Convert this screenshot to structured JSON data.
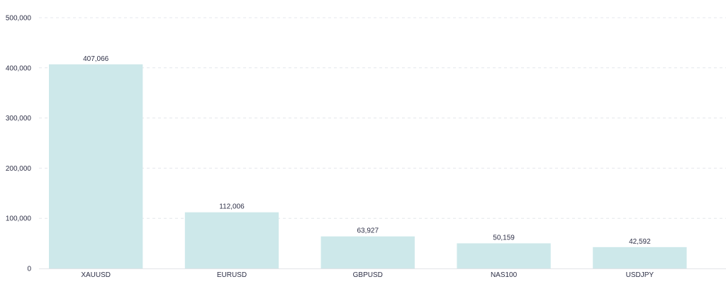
{
  "chart_data": {
    "type": "bar",
    "title": "",
    "xlabel": "",
    "ylabel": "",
    "categories": [
      "XAUUSD",
      "EURUSD",
      "GBPUSD",
      "NAS100",
      "USDJPY"
    ],
    "values": [
      407066,
      112006,
      63927,
      50159,
      42592
    ],
    "value_labels": [
      "407,066",
      "112,006",
      "63,927",
      "50,159",
      "42,592"
    ],
    "ylim": [
      0,
      500000
    ],
    "yticks": [
      0,
      100000,
      200000,
      300000,
      400000,
      500000
    ],
    "ytick_labels": [
      "0",
      "100,000",
      "200,000",
      "300,000",
      "400,000",
      "500,000"
    ],
    "grid": true,
    "legend": "none",
    "colors": {
      "bar": "#cde8ea",
      "text": "#2e3047",
      "grid": "#e4e7ec",
      "axis": "#e2e4e8"
    }
  }
}
